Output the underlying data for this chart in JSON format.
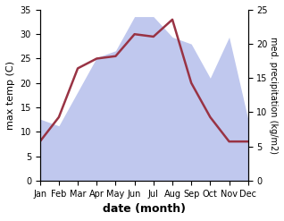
{
  "months": [
    "Jan",
    "Feb",
    "Mar",
    "Apr",
    "May",
    "Jun",
    "Jul",
    "Aug",
    "Sep",
    "Oct",
    "Nov",
    "Dec"
  ],
  "temperature": [
    8,
    13,
    23,
    25,
    25.5,
    30,
    29.5,
    33,
    20,
    13,
    8,
    8
  ],
  "precipitation": [
    9,
    8,
    13,
    18,
    19,
    24,
    24,
    21,
    20,
    15,
    21,
    9
  ],
  "temp_color": "#993344",
  "precip_color": "#c0c8ee",
  "left_ylim": [
    0,
    35
  ],
  "right_ylim": [
    0,
    25
  ],
  "left_yticks": [
    0,
    5,
    10,
    15,
    20,
    25,
    30,
    35
  ],
  "right_yticks": [
    0,
    5,
    10,
    15,
    20,
    25
  ],
  "xlabel": "date (month)",
  "ylabel_left": "max temp (C)",
  "ylabel_right": "med. precipitation (kg/m2)",
  "figsize": [
    3.18,
    2.47
  ],
  "dpi": 100
}
